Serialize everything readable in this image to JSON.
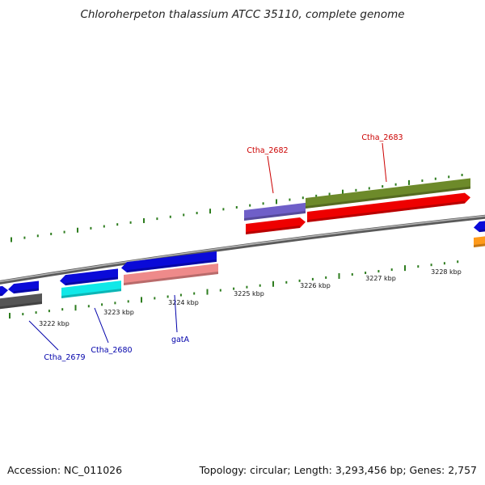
{
  "title": "Chloroherpeton thalassium ATCC 35110, complete genome",
  "footer": {
    "accession": "Accession: NC_011026",
    "topology": "Topology: circular; Length: 3,293,456 bp; Genes: 2,757"
  },
  "colors": {
    "backbone": "#888888",
    "tick": "#2e7d1f",
    "label_forward": "#cc0000",
    "label_reverse": "#0000aa"
  },
  "kbp_labels": [
    "3222 kbp",
    "3223 kbp",
    "3224 kbp",
    "3225 kbp",
    "3226 kbp",
    "3227 kbp",
    "3228 kbp"
  ],
  "genes": [
    {
      "name": "gene-upper-purple",
      "color": "#6f5fc8",
      "strand": "forward"
    },
    {
      "name": "gene-upper-olive",
      "color": "#6d8a2a",
      "strand": "forward"
    },
    {
      "name": "gene-upper-red-a",
      "color": "#ee0000",
      "strand": "forward"
    },
    {
      "name": "gene-upper-red-b",
      "color": "#ee0000",
      "strand": "forward"
    },
    {
      "name": "gene-right-blue",
      "color": "#0a0ad8",
      "strand": "forward"
    },
    {
      "name": "gene-right-orange",
      "color": "#ff9a1a",
      "strand": "forward"
    },
    {
      "name": "gene-lower-blue-a",
      "color": "#0a0ad8",
      "strand": "reverse"
    },
    {
      "name": "gene-lower-blue-b",
      "color": "#0a0ad8",
      "strand": "reverse"
    },
    {
      "name": "gene-lower-blue-c",
      "color": "#0a0ad8",
      "strand": "reverse"
    },
    {
      "name": "gene-lower-blue-d",
      "color": "#0a0ad8",
      "strand": "reverse"
    },
    {
      "name": "gene-lower-grey",
      "color": "#555555",
      "strand": "reverse"
    },
    {
      "name": "gene-lower-cyan",
      "color": "#10e8e8",
      "strand": "reverse"
    },
    {
      "name": "gene-lower-pink",
      "color": "#ee8a8a",
      "strand": "reverse"
    }
  ],
  "gene_labels": [
    {
      "text": "Ctha_2682",
      "strand": "forward"
    },
    {
      "text": "Ctha_2683",
      "strand": "forward"
    },
    {
      "text": "Ctha_2679",
      "strand": "reverse"
    },
    {
      "text": "Ctha_2680",
      "strand": "reverse"
    },
    {
      "text": "gatA",
      "strand": "reverse"
    }
  ]
}
